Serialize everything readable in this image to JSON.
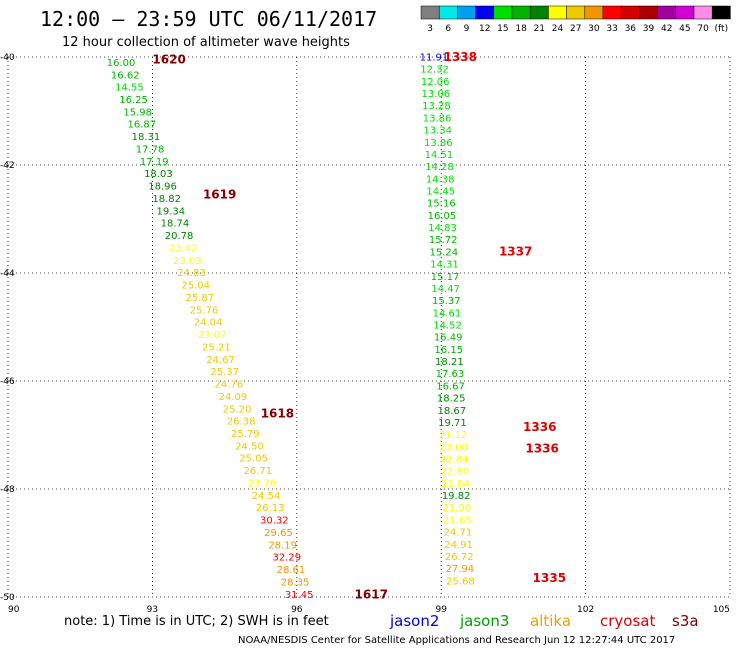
{
  "header": {
    "title": "12:00 – 23:59 UTC 06/11/2017",
    "subtitle": "12 hour collection of altimeter wave heights"
  },
  "colorbar": {
    "ticks": [
      "3",
      "6",
      "9",
      "12",
      "15",
      "18",
      "21",
      "24",
      "27",
      "30",
      "33",
      "36",
      "39",
      "42",
      "45",
      "70",
      "(ft)"
    ],
    "colors": [
      "#808080",
      "#00e8e8",
      "#00a0f0",
      "#0000f0",
      "#00e000",
      "#00b400",
      "#008200",
      "#ffff00",
      "#f0c800",
      "#f09600",
      "#ff0000",
      "#d20000",
      "#aa0000",
      "#a000a0",
      "#d200d2",
      "#ff8ce6",
      "#000000"
    ]
  },
  "chart_data": {
    "type": "scatter",
    "title": "12:00 – 23:59 UTC 06/11/2017",
    "subtitle": "12 hour collection of altimeter wave heights",
    "x_ticks": [
      "90",
      "93",
      "96",
      "99",
      "102",
      "105"
    ],
    "y_ticks": [
      "-40",
      "-42",
      "-44",
      "-46",
      "-48",
      "-50"
    ],
    "xlim": [
      90,
      105
    ],
    "ylim": [
      -50,
      -40
    ],
    "grid": true,
    "tracks": [
      {
        "lon_start": 92.35,
        "lon_end": 96.05,
        "lat_start": -40.1,
        "lat_end": -49.95,
        "values": [
          "16.00",
          "16.62",
          "14.55",
          "16.25",
          "15.98",
          "16.87",
          "18.31",
          "17.78",
          "17.19",
          "18.03",
          "18.96",
          "18.82",
          "19.34",
          "18.74",
          "20.78",
          "23.42",
          "23.03",
          "24.83",
          "25.04",
          "25.87",
          "25.76",
          "24.04",
          "23.07",
          "25.21",
          "24.67",
          "25.37",
          "24.76",
          "24.09",
          "25.20",
          "26.38",
          "25.79",
          "24.50",
          "25.05",
          "26.71",
          "23.76",
          "24.54",
          "26.13",
          "30.32",
          "29.65",
          "28.19",
          "32.29",
          "28.61",
          "28.35",
          "31.45"
        ]
      },
      {
        "lon_start": 98.85,
        "lon_end": 99.4,
        "lat_start": -40.0,
        "lat_end": -49.7,
        "values": [
          "11.91",
          "12.32",
          "12.06",
          "13.06",
          "13.28",
          "13.86",
          "13.34",
          "13.86",
          "14.51",
          "14.28",
          "14.38",
          "14.45",
          "15.16",
          "16.05",
          "14.83",
          "15.72",
          "15.24",
          "14.31",
          "15.17",
          "14.47",
          "15.37",
          "14.61",
          "14.52",
          "16.49",
          "16.15",
          "18.21",
          "17.63",
          "16.67",
          "18.25",
          "18.67",
          "19.71",
          "21.12",
          "23.00",
          "22.84",
          "22.80",
          "21.84",
          "19.82",
          "21.90",
          "21.65",
          "24.71",
          "24.91",
          "26.72",
          "27.94",
          "25.68"
        ]
      }
    ],
    "pass_labels": [
      {
        "text": "1620",
        "lon": 93.0,
        "lat": -40.05
      },
      {
        "text": "1619",
        "lon": 94.05,
        "lat": -42.55
      },
      {
        "text": "1618",
        "lon": 95.25,
        "lat": -46.6
      },
      {
        "text": "1617",
        "lon": 97.2,
        "lat": -49.95
      },
      {
        "text": "1338",
        "lon": 99.05,
        "lat": -40.0
      },
      {
        "text": "1337",
        "lon": 100.2,
        "lat": -43.6
      },
      {
        "text": "1336",
        "lon": 100.7,
        "lat": -46.85
      },
      {
        "text": "1336",
        "lon": 100.75,
        "lat": -47.25
      },
      {
        "text": "1335",
        "lon": 100.9,
        "lat": -49.65
      }
    ]
  },
  "footer": {
    "note": "note:  1) Time is in UTC;  2) SWH is in feet",
    "satellites": [
      {
        "name": "jason2",
        "color": "#0000e0"
      },
      {
        "name": "jason3",
        "color": "#00a000"
      },
      {
        "name": "altika",
        "color": "#f0a000"
      },
      {
        "name": "cryosat",
        "color": "#e00000"
      },
      {
        "name": "s3a",
        "color": "#800000"
      }
    ],
    "credit": "NOAA/NESDIS Center for Satellite Applications and Research     Jun 12 12:27:44 UTC 2017"
  },
  "colors": {
    "pass_label": "#800000",
    "pass_label_alt": "#e00000",
    "grid": "#000000"
  }
}
